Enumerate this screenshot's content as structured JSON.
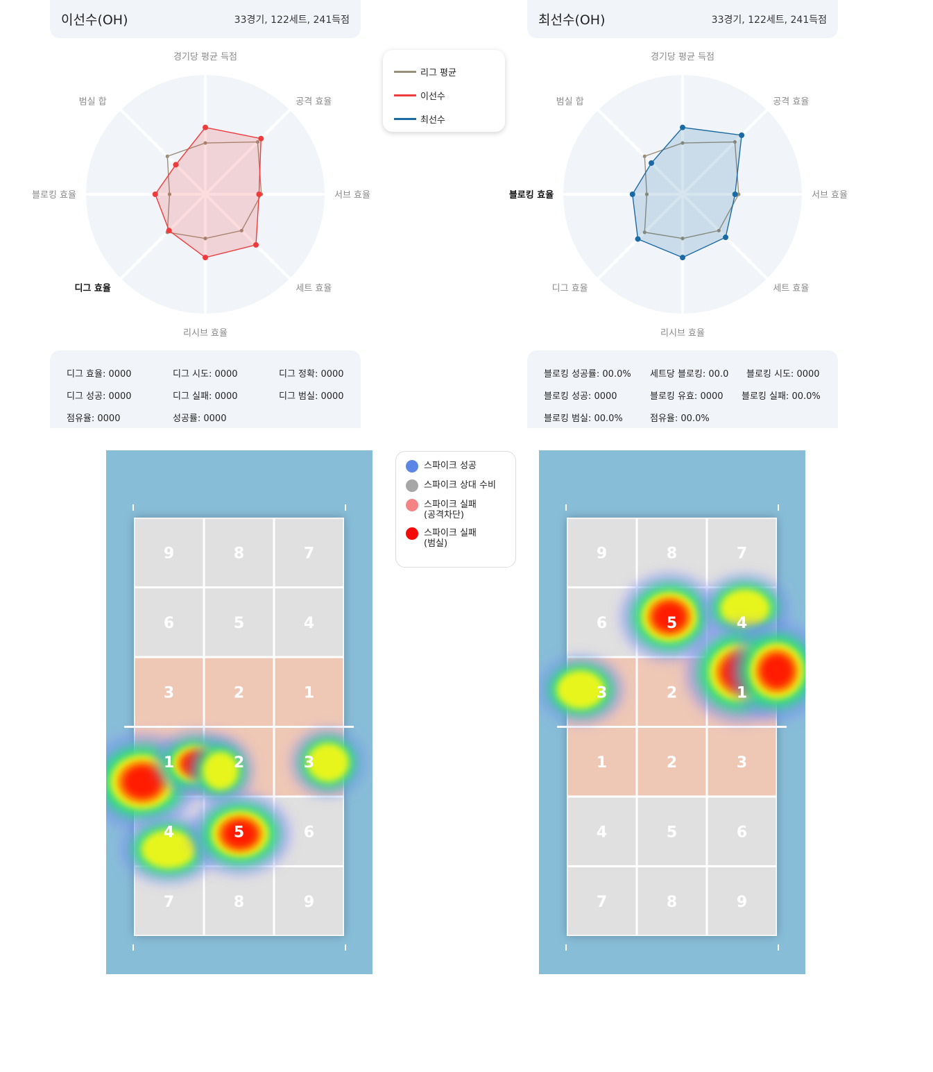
{
  "players": [
    {
      "name": "이선수(OH)",
      "stats": "33경기, 122세트, 241득점"
    },
    {
      "name": "최선수(OH)",
      "stats": "33경기, 122세트, 241득점"
    }
  ],
  "radar_axes": [
    "경기당 평균 득점",
    "공격 효율",
    "서브 효율",
    "세트 효율",
    "리시브 효율",
    "디그 효율",
    "블로킹 효율",
    "범실 합"
  ],
  "radar_highlight": [
    "디그 효율",
    "블로킹 효율"
  ],
  "radar_legend": [
    {
      "label": "리그 평균",
      "color": "#9a8f78"
    },
    {
      "label": "이선수",
      "color": "#ee3b3b"
    },
    {
      "label": "최선수",
      "color": "#1b6aa3"
    }
  ],
  "chart_data": [
    {
      "type": "radar",
      "axes": [
        "경기당 평균 득점",
        "공격 효율",
        "서브 효율",
        "세트 효율",
        "리시브 효율",
        "디그 효율",
        "블로킹 효율",
        "범실 합"
      ],
      "series": [
        {
          "name": "리그 평균",
          "values": [
            0.43,
            0.62,
            0.47,
            0.43,
            0.37,
            0.45,
            0.3,
            0.45
          ]
        },
        {
          "name": "이선수",
          "values": [
            0.56,
            0.66,
            0.45,
            0.6,
            0.53,
            0.43,
            0.42,
            0.35
          ]
        }
      ]
    },
    {
      "type": "radar",
      "axes": [
        "경기당 평균 득점",
        "공격 효율",
        "서브 효율",
        "세트 효율",
        "리시브 효율",
        "디그 효율",
        "블로킹 효율",
        "범실 합"
      ],
      "series": [
        {
          "name": "리그 평균",
          "values": [
            0.43,
            0.62,
            0.47,
            0.43,
            0.37,
            0.45,
            0.3,
            0.45
          ]
        },
        {
          "name": "최선수",
          "values": [
            0.56,
            0.7,
            0.44,
            0.51,
            0.53,
            0.53,
            0.42,
            0.37
          ]
        }
      ]
    }
  ],
  "stats_left": [
    "디그 효율: 0000",
    "디그 시도: 0000",
    "디그 정확: 0000",
    "디그 성공: 0000",
    "디그 실패: 0000",
    "디그 범실: 0000",
    "점유율: 0000",
    "성공률: 0000"
  ],
  "stats_right": [
    "블로킹 성공률: 00.0%",
    "세트당 블로킹: 00.0",
    "블로킹 시도: 0000",
    "블로킹 성공: 0000",
    "블로킹 유효: 0000",
    "블로킹 실패: 00.0%",
    "블로킹 범실: 00.0%",
    "점유율: 00.0%"
  ],
  "spike_legend": [
    {
      "label": "스파이크 성공",
      "color": "#5b86e5"
    },
    {
      "label": "스파이크 상대 수비",
      "color": "#a6a6a6"
    },
    {
      "label": "스파이크 실패\n(공격차단)",
      "color": "#f58383"
    },
    {
      "label": "스파이크 실패\n(범실)",
      "color": "#f50a0a"
    }
  ],
  "court_left_zones": [
    [
      "9",
      "8",
      "7"
    ],
    [
      "6",
      "5",
      "4"
    ],
    [
      "3",
      "2",
      "1"
    ],
    [
      "1",
      "2",
      "3"
    ],
    [
      "4",
      "5",
      "6"
    ],
    [
      "7",
      "8",
      "9"
    ]
  ],
  "court_right_zones": [
    [
      "9",
      "8",
      "7"
    ],
    [
      "6",
      "5",
      "4"
    ],
    [
      "3",
      "2",
      "1"
    ],
    [
      "1",
      "2",
      "3"
    ],
    [
      "4",
      "5",
      "6"
    ],
    [
      "7",
      "8",
      "9"
    ]
  ],
  "colors": {
    "panel": "#f1f5f9",
    "court_bg": "#88bdd8",
    "zone_gray": "#e0e0e0",
    "zone_front": "#eec7b5",
    "radar_red": "#ee3b3b",
    "radar_blue": "#1b6aa3",
    "radar_avg": "#9a8f78"
  }
}
